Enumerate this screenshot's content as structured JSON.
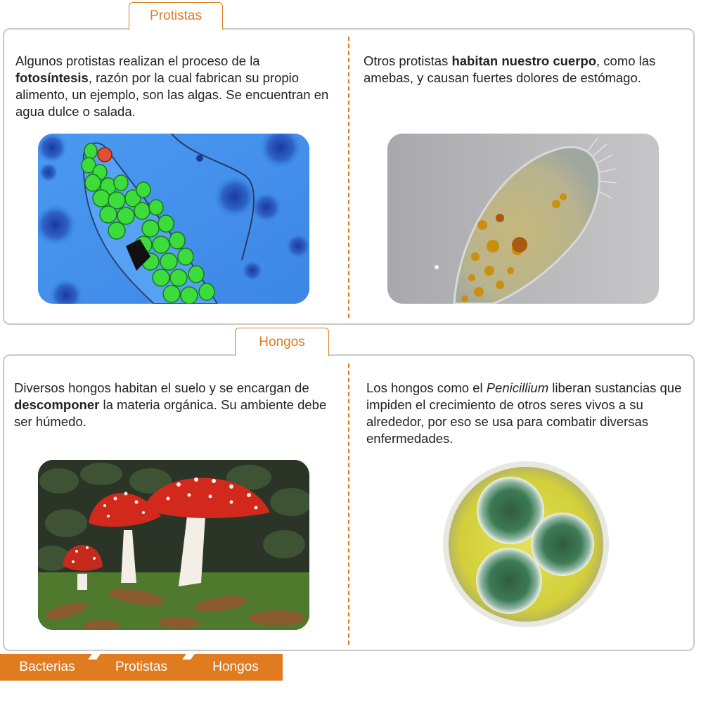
{
  "sections": {
    "protistas": {
      "tab_label": "Protistas",
      "left": {
        "t1": "Algunos protistas realizan el proceso de la ",
        "b1": "fotosíntesis",
        "t2": ", razón por la cual fabrican su propio alimento, un ejemplo, son las algas. Se encuentran en agua dulce o salada."
      },
      "right": {
        "t1": "Otros protistas ",
        "b1": "habitan nuestro cuerpo",
        "t2": ", como las amebas, y causan fuertes dolores de estómago."
      }
    },
    "hongos": {
      "tab_label": "Hongos",
      "left": {
        "t1": "Diversos hongos habitan el suelo y se encargan de ",
        "b1": "descomponer",
        "t2": " la materia orgánica. Su ambiente debe ser húmedo."
      },
      "right": {
        "t1": "Los hongos como el ",
        "i1": "Penicillium",
        "t2": " liberan sustancias que impiden el crecimiento de otros seres vivos a su alrededor, por eso se usa para combatir diversas enfermedades."
      }
    }
  },
  "bottom_nav": {
    "tabs": [
      "Bacterias",
      "Protistas",
      "Hongos"
    ]
  },
  "colors": {
    "accent": "#e07b1f",
    "border": "#c8c8c8"
  }
}
